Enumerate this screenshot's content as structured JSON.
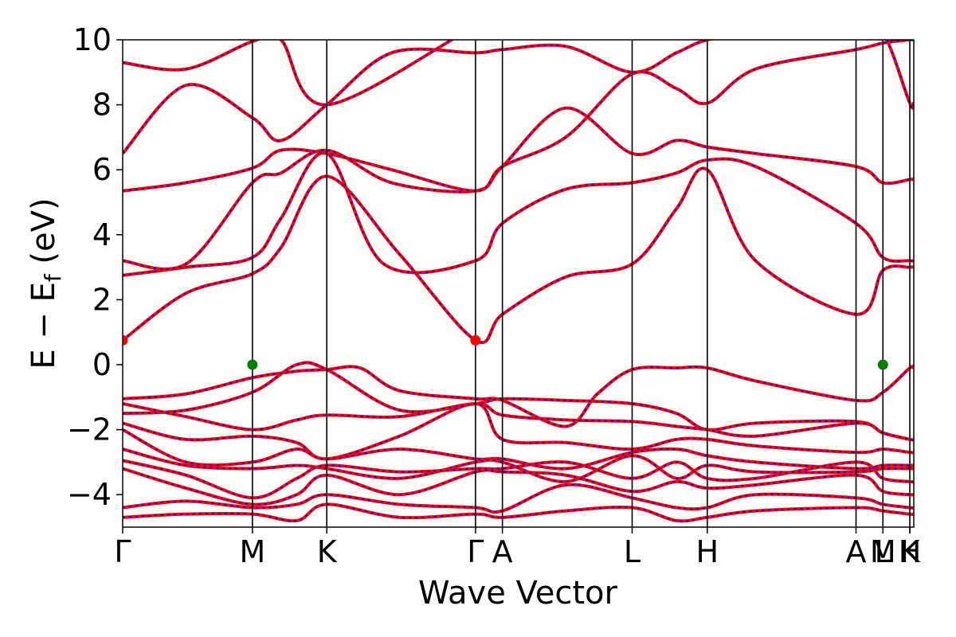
{
  "chart_data": {
    "type": "line",
    "title": "",
    "xlabel": "Wave Vector",
    "ylabel": "E − E_f (eV)",
    "ylabel_main": "E − E",
    "ylabel_sub": "f",
    "ylabel_unit": " (eV)",
    "ylim": [
      -5,
      10
    ],
    "yticks": [
      -4,
      -2,
      0,
      2,
      4,
      6,
      8,
      10
    ],
    "ytick_labels": [
      "−4",
      "−2",
      "0",
      "2",
      "4",
      "6",
      "8",
      "10"
    ],
    "grid": false,
    "xticks": [
      {
        "label": "Γ",
        "k": 0.0
      },
      {
        "label": "M",
        "k": 0.164
      },
      {
        "label": "K",
        "k": 0.258
      },
      {
        "label": "Γ",
        "k": 0.446
      },
      {
        "label": "A",
        "k": 0.48
      },
      {
        "label": "L",
        "k": 0.644
      },
      {
        "label": "H",
        "k": 0.739
      },
      {
        "label": "A",
        "k": 0.927
      },
      {
        "label": "L",
        "k": 0.961
      },
      {
        "label": "M",
        "k": 0.961
      },
      {
        "label": "H",
        "k": 0.995
      },
      {
        "label": "K",
        "k": 0.995
      }
    ],
    "vlines_k": [
      0.164,
      0.258,
      0.446,
      0.48,
      0.644,
      0.739,
      0.927,
      0.961,
      0.995
    ],
    "series_style": {
      "color_line": "#ff0000",
      "color_dash": "#0000ff"
    },
    "markers": [
      {
        "k": 0.0,
        "e": 0.75,
        "color": "#ff0000"
      },
      {
        "k": 0.446,
        "e": 0.75,
        "color": "#ff0000"
      },
      {
        "k": 0.164,
        "e": 0.0,
        "color": "#008000"
      },
      {
        "k": 0.961,
        "e": 0.0,
        "color": "#008000"
      }
    ],
    "bands": [
      {
        "k": [
          0,
          0.08,
          0.164,
          0.2,
          0.258,
          0.35,
          0.446,
          0.48,
          0.56,
          0.644,
          0.7,
          0.739,
          0.8,
          0.927,
          0.961,
          0.995,
          1.0
        ],
        "e": [
          0.75,
          2.2,
          2.8,
          3.6,
          5.8,
          3.4,
          0.75,
          1.55,
          2.7,
          3.1,
          4.8,
          6.0,
          3.2,
          1.55,
          2.9,
          3.0,
          3.0
        ]
      },
      {
        "k": [
          0,
          0.08,
          0.164,
          0.2,
          0.258,
          0.33,
          0.446,
          0.48,
          0.56,
          0.644,
          0.7,
          0.739,
          0.8,
          0.927,
          0.961,
          0.995,
          1.0
        ],
        "e": [
          2.75,
          3.0,
          3.3,
          4.5,
          6.5,
          3.1,
          3.2,
          4.35,
          5.4,
          5.6,
          5.9,
          6.3,
          6.1,
          4.35,
          3.3,
          3.2,
          3.2
        ]
      },
      {
        "k": [
          0,
          0.08,
          0.164,
          0.2,
          0.258,
          0.34,
          0.446,
          0.48,
          0.56,
          0.644,
          0.7,
          0.739,
          0.8,
          0.927,
          0.961,
          0.995,
          1.0
        ],
        "e": [
          3.2,
          3.1,
          5.6,
          5.9,
          6.6,
          5.6,
          5.35,
          6.1,
          7.9,
          6.5,
          6.9,
          6.7,
          6.5,
          6.1,
          5.6,
          5.7,
          5.7
        ]
      },
      {
        "k": [
          0,
          0.08,
          0.164,
          0.2,
          0.258,
          0.34,
          0.446,
          0.48,
          0.56,
          0.644,
          0.7,
          0.739,
          0.8,
          0.927,
          0.961,
          0.995,
          1.0
        ],
        "e": [
          5.35,
          5.6,
          6.05,
          6.6,
          6.5,
          6.0,
          5.35,
          6.1,
          7.0,
          8.95,
          8.5,
          8.05,
          9.1,
          9.7,
          9.9,
          10.0,
          10.0
        ]
      },
      {
        "k": [
          0,
          0.08,
          0.164,
          0.2,
          0.258,
          0.34,
          0.446,
          0.48,
          0.56,
          0.644,
          0.7,
          0.739,
          0.8,
          0.927,
          0.961,
          0.995,
          1.0
        ],
        "e": [
          6.5,
          8.6,
          7.6,
          6.9,
          8.0,
          9.6,
          9.6,
          9.7,
          9.8,
          9.0,
          9.6,
          10.0,
          10.2,
          10.2,
          10.2,
          8.05,
          8.05
        ]
      },
      {
        "k": [
          0,
          0.08,
          0.164,
          0.2,
          0.258,
          0.446,
          0.48,
          0.644,
          0.739,
          0.927,
          0.961,
          1.0
        ],
        "e": [
          9.3,
          9.1,
          9.95,
          10.0,
          8.0,
          10.4,
          10.4,
          10.4,
          10.4,
          10.4,
          10.4,
          10.4
        ]
      },
      {
        "k": [
          0,
          0.08,
          0.164,
          0.22,
          0.258,
          0.3,
          0.35,
          0.446,
          0.48,
          0.56,
          0.6,
          0.644,
          0.7,
          0.739,
          0.8,
          0.927,
          0.961,
          0.995,
          1.0
        ],
        "e": [
          -1.05,
          -0.9,
          -0.4,
          -0.2,
          -0.15,
          -0.1,
          -0.8,
          -1.05,
          -1.1,
          -1.9,
          -0.9,
          -0.15,
          -0.1,
          -0.1,
          -0.5,
          -1.1,
          -0.85,
          -0.1,
          -0.1
        ]
      },
      {
        "k": [
          0,
          0.08,
          0.164,
          0.22,
          0.258,
          0.35,
          0.446,
          0.48,
          0.56,
          0.644,
          0.7,
          0.739,
          0.8,
          0.927,
          0.961,
          0.995,
          1.0
        ],
        "e": [
          -1.5,
          -1.4,
          -0.85,
          0.0,
          -0.15,
          -1.4,
          -1.2,
          -1.05,
          -1.1,
          -1.2,
          -1.5,
          -2.0,
          -1.8,
          -1.75,
          -2.1,
          -2.3,
          -2.3
        ]
      },
      {
        "k": [
          0,
          0.08,
          0.164,
          0.22,
          0.258,
          0.35,
          0.446,
          0.48,
          0.56,
          0.644,
          0.7,
          0.739,
          0.8,
          0.927,
          0.961,
          0.995,
          1.0
        ],
        "e": [
          -1.2,
          -1.6,
          -2.0,
          -1.7,
          -1.55,
          -1.6,
          -1.2,
          -1.55,
          -1.7,
          -1.75,
          -1.9,
          -2.0,
          -2.2,
          -1.8,
          -2.1,
          -2.3,
          -2.3
        ]
      },
      {
        "k": [
          0,
          0.08,
          0.164,
          0.22,
          0.258,
          0.35,
          0.446,
          0.48,
          0.56,
          0.644,
          0.7,
          0.739,
          0.8,
          0.927,
          0.961,
          0.995,
          1.0
        ],
        "e": [
          -1.8,
          -2.3,
          -2.2,
          -2.4,
          -2.9,
          -2.2,
          -1.2,
          -2.3,
          -2.4,
          -2.6,
          -2.3,
          -2.3,
          -2.5,
          -2.7,
          -2.6,
          -2.7,
          -2.7
        ]
      },
      {
        "k": [
          0,
          0.08,
          0.164,
          0.22,
          0.258,
          0.35,
          0.446,
          0.48,
          0.56,
          0.644,
          0.7,
          0.739,
          0.8,
          0.927,
          0.961,
          0.995,
          1.0
        ],
        "e": [
          -2.0,
          -3.0,
          -3.0,
          -2.6,
          -2.9,
          -2.6,
          -2.9,
          -2.9,
          -3.2,
          -2.7,
          -2.6,
          -2.8,
          -3.0,
          -3.2,
          -3.1,
          -3.1,
          -3.1
        ]
      },
      {
        "k": [
          0,
          0.08,
          0.164,
          0.22,
          0.258,
          0.35,
          0.446,
          0.48,
          0.56,
          0.644,
          0.7,
          0.739,
          0.8,
          0.927,
          0.961,
          0.995,
          1.0
        ],
        "e": [
          -2.6,
          -3.1,
          -3.2,
          -3.1,
          -3.2,
          -3.5,
          -3.0,
          -3.0,
          -3.6,
          -2.8,
          -3.5,
          -3.1,
          -3.3,
          -3.3,
          -3.2,
          -3.2,
          -3.2
        ]
      },
      {
        "k": [
          0,
          0.08,
          0.164,
          0.22,
          0.258,
          0.35,
          0.446,
          0.48,
          0.56,
          0.644,
          0.7,
          0.739,
          0.8,
          0.927,
          0.961,
          0.995,
          1.0
        ],
        "e": [
          -2.95,
          -3.4,
          -4.1,
          -3.5,
          -3.1,
          -3.3,
          -3.2,
          -3.2,
          -3.0,
          -3.5,
          -3.0,
          -3.5,
          -3.5,
          -3.0,
          -3.5,
          -3.6,
          -3.6
        ]
      },
      {
        "k": [
          0,
          0.08,
          0.164,
          0.22,
          0.258,
          0.35,
          0.446,
          0.48,
          0.56,
          0.644,
          0.7,
          0.739,
          0.8,
          0.927,
          0.961,
          0.995,
          1.0
        ],
        "e": [
          -3.2,
          -3.8,
          -4.3,
          -4.0,
          -3.4,
          -4.0,
          -3.3,
          -3.3,
          -3.4,
          -3.9,
          -3.6,
          -3.8,
          -3.7,
          -3.4,
          -3.9,
          -4.0,
          -4.0
        ]
      },
      {
        "k": [
          0,
          0.08,
          0.164,
          0.22,
          0.258,
          0.35,
          0.446,
          0.48,
          0.56,
          0.644,
          0.7,
          0.739,
          0.8,
          0.927,
          0.961,
          0.995,
          1.0
        ],
        "e": [
          -4.4,
          -4.2,
          -4.4,
          -4.3,
          -4.0,
          -4.3,
          -4.4,
          -4.5,
          -3.7,
          -4.1,
          -4.4,
          -4.4,
          -4.0,
          -4.1,
          -4.3,
          -4.4,
          -4.4
        ]
      },
      {
        "k": [
          0,
          0.08,
          0.164,
          0.22,
          0.258,
          0.35,
          0.446,
          0.48,
          0.56,
          0.644,
          0.7,
          0.739,
          0.8,
          0.927,
          0.961,
          0.995,
          1.0
        ],
        "e": [
          -4.7,
          -4.6,
          -4.6,
          -4.8,
          -4.3,
          -4.7,
          -4.6,
          -4.7,
          -4.5,
          -4.4,
          -4.8,
          -4.7,
          -4.5,
          -4.4,
          -4.5,
          -4.6,
          -4.6
        ]
      }
    ]
  }
}
